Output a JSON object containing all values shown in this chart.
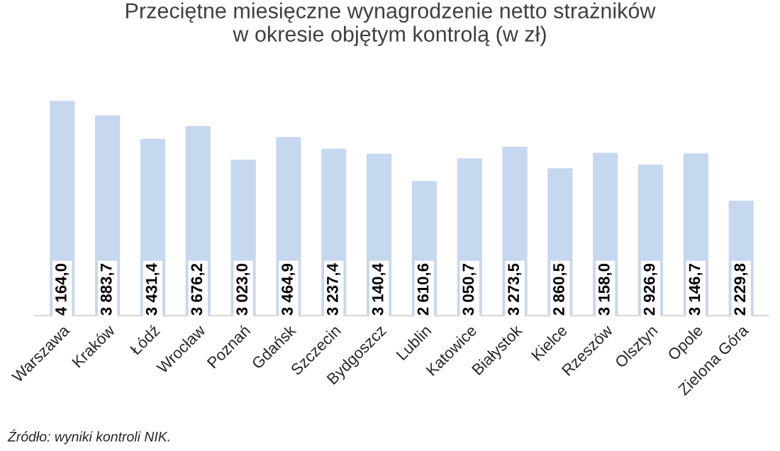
{
  "chart_data": {
    "type": "bar",
    "title": "Przeciętne miesięczne wynagrodzenie netto strażników\nw okresie objętym kontrolą (w zł)",
    "categories": [
      "Warszawa",
      "Kraków",
      "Łódź",
      "Wrocław",
      "Poznań",
      "Gdańsk",
      "Szczecin",
      "Bydgoszcz",
      "Lublin",
      "Katowice",
      "Białystok",
      "Kielce",
      "Rzeszów",
      "Olsztyn",
      "Opole",
      "Zielona Góra"
    ],
    "values": [
      4164.0,
      3883.7,
      3431.4,
      3676.2,
      3023.0,
      3464.9,
      3237.4,
      3140.4,
      2610.6,
      3050.7,
      3273.5,
      2860.5,
      3158.0,
      2926.9,
      3146.7,
      2229.8
    ],
    "value_labels": [
      "4 164,0",
      "3 883,7",
      "3 431,4",
      "3 676,2",
      "3 023,0",
      "3 464,9",
      "3 237,4",
      "3 140,4",
      "2 610,6",
      "3 050,7",
      "3 273,5",
      "2 860,5",
      "3 158,0",
      "2 926,9",
      "3 146,7",
      "2 229,8"
    ],
    "color": "#c6d7f0",
    "annotations": [
      "Źródło: wyniki kontroli NIK."
    ]
  }
}
